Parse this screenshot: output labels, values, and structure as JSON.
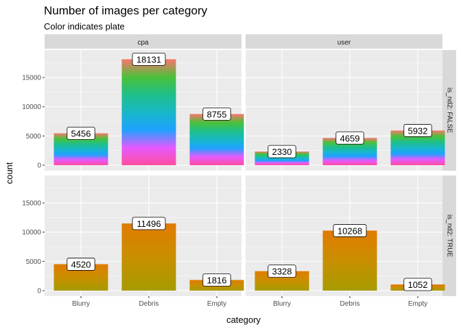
{
  "chart_data": {
    "type": "bar",
    "title": "Number of images per category",
    "subtitle": "Color indicates plate",
    "xlabel": "category",
    "ylabel": "count",
    "categories": [
      "Blurry",
      "Debris",
      "Empty"
    ],
    "ylim": [
      0,
      19000
    ],
    "yticks": [
      0,
      5000,
      10000,
      15000
    ],
    "grid": true,
    "col_facets": [
      "cpa",
      "user"
    ],
    "row_facets": [
      "is_nd2: FALSE",
      "is_nd2: TRUE"
    ],
    "panels": [
      {
        "col": "cpa",
        "row": "is_nd2: FALSE",
        "values": [
          5456,
          18131,
          8755
        ],
        "labels": [
          "5456",
          "18131",
          "8755"
        ]
      },
      {
        "col": "user",
        "row": "is_nd2: FALSE",
        "values": [
          2330,
          4659,
          5932
        ],
        "labels": [
          "2330",
          "4659",
          "5932"
        ]
      },
      {
        "col": "cpa",
        "row": "is_nd2: TRUE",
        "values": [
          4520,
          11496,
          1816
        ],
        "labels": [
          "4520",
          "11496",
          "1816"
        ]
      },
      {
        "col": "user",
        "row": "is_nd2: TRUE",
        "values": [
          3328,
          10268,
          1052
        ],
        "labels": [
          "3328",
          "10268",
          "1052"
        ]
      }
    ],
    "colors": {
      "panel_bg": "#ebebeb",
      "strip_bg": "#d9d9d9",
      "grid": "#ffffff",
      "row_false_stops": [
        "#ff4d9e",
        "#e45aff",
        "#1ea2ff",
        "#18b8c8",
        "#1fbf8a",
        "#4cc03a",
        "#f8766d"
      ],
      "row_true_stops": [
        "#a69b00",
        "#c98f00",
        "#e07b00"
      ]
    }
  }
}
